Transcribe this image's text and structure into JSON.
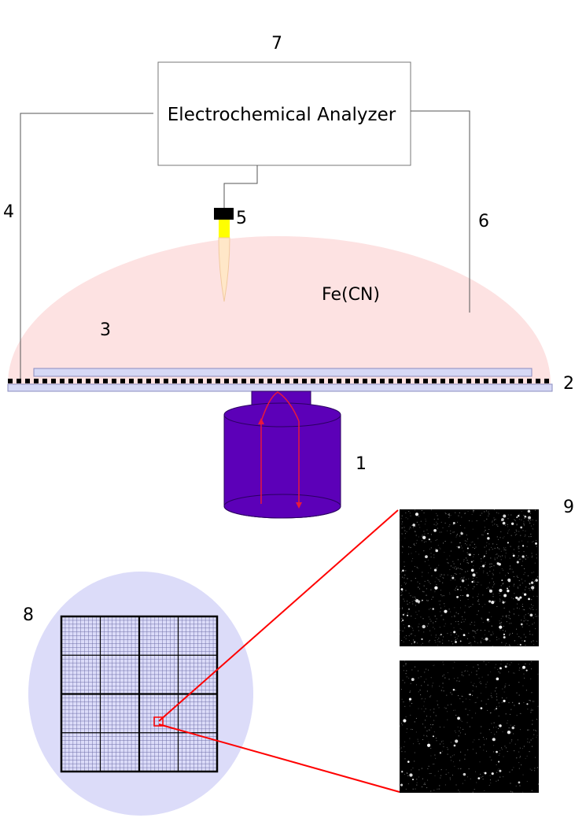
{
  "labels": {
    "microscope": "1",
    "substrate": "2",
    "solution": "3",
    "wire_left": "4",
    "electrode": "5",
    "wire_right": "6",
    "analyzer": "7",
    "grid": "8",
    "images": "9"
  },
  "analyzer_text": "Electrochemical Analyzer",
  "solution_text": "Fe(CN)",
  "colors": {
    "solution": "#fde2e2",
    "objective": "#5c00b8",
    "objective_edge": "#2b0060",
    "beam": "#e8193c",
    "slide": "#d6d8f5",
    "dish": "#dcdcf9",
    "grid_line": "#000000",
    "zoom_line": "#ff0000",
    "electrode_tip": "#ffe7c8",
    "electrode_band": "#ffff00"
  }
}
